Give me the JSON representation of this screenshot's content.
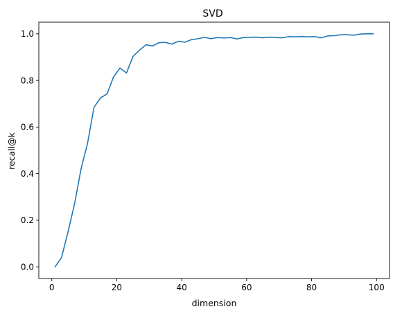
{
  "chart_data": {
    "type": "line",
    "title": "SVD",
    "xlabel": "dimension",
    "ylabel": "recall@k",
    "xlim": [
      -4,
      104
    ],
    "ylim": [
      -0.05,
      1.05
    ],
    "xticks": [
      0,
      20,
      40,
      60,
      80,
      100
    ],
    "yticks": [
      0.0,
      0.2,
      0.4,
      0.6,
      0.8,
      1.0
    ],
    "xtick_labels": [
      "0",
      "20",
      "40",
      "60",
      "80",
      "100"
    ],
    "ytick_labels": [
      "0.0",
      "0.2",
      "0.4",
      "0.6",
      "0.8",
      "1.0"
    ],
    "grid": false,
    "line_color": "#1f77b4",
    "series": [
      {
        "x": [
          1,
          3,
          5,
          7,
          9,
          11,
          13,
          15,
          17,
          19,
          21,
          23,
          25,
          27,
          29,
          31,
          33,
          35,
          37,
          39,
          41,
          43,
          45,
          47,
          49,
          51,
          53,
          55,
          57,
          59,
          61,
          63,
          65,
          67,
          69,
          71,
          73,
          75,
          77,
          79,
          81,
          83,
          85,
          87,
          89,
          91,
          93,
          95,
          97,
          99
        ],
        "values": [
          0.0,
          0.04,
          0.15,
          0.27,
          0.42,
          0.53,
          0.685,
          0.725,
          0.742,
          0.815,
          0.853,
          0.832,
          0.903,
          0.93,
          0.953,
          0.948,
          0.962,
          0.963,
          0.956,
          0.968,
          0.964,
          0.975,
          0.979,
          0.985,
          0.979,
          0.984,
          0.982,
          0.984,
          0.978,
          0.984,
          0.985,
          0.986,
          0.983,
          0.986,
          0.984,
          0.983,
          0.988,
          0.987,
          0.988,
          0.987,
          0.988,
          0.983,
          0.991,
          0.992,
          0.996,
          0.996,
          0.994,
          0.999,
          1.0,
          1.0
        ]
      }
    ]
  }
}
